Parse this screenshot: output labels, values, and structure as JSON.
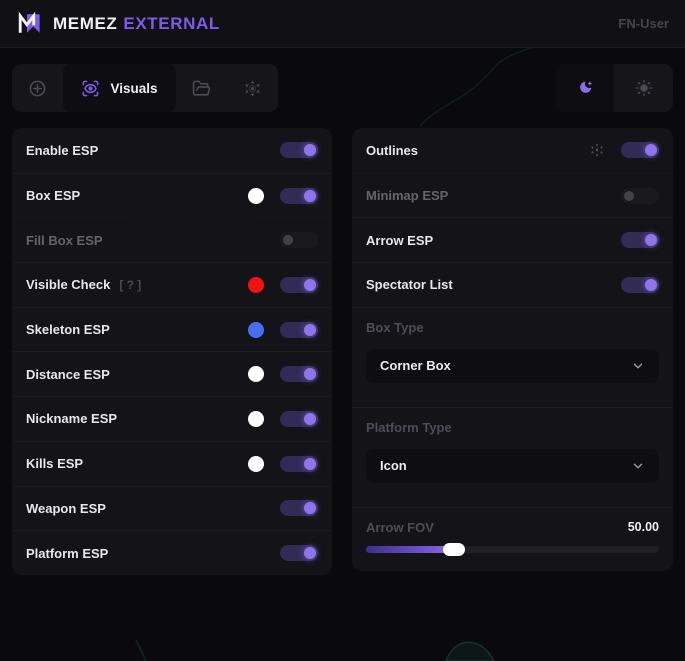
{
  "colors": {
    "accent": "#7c5ce8",
    "toggle_on_track": "#322b55",
    "toggle_on_knob": "#8f75ec",
    "swatch_white": "#ffffff",
    "swatch_red": "#f31212",
    "swatch_blue": "#4a6df5"
  },
  "header": {
    "brand_primary": "MEMEZ",
    "brand_secondary": "EXTERNAL",
    "user_label": "FN-User"
  },
  "toolbar": {
    "tabs": [
      {
        "id": "aim",
        "icon": "crosshair-icon",
        "label": "",
        "active": false
      },
      {
        "id": "visuals",
        "icon": "eye-scan-icon",
        "label": "Visuals",
        "active": true
      },
      {
        "id": "configs",
        "icon": "folder-icon",
        "label": "",
        "active": false
      },
      {
        "id": "settings",
        "icon": "gear-icon",
        "label": "",
        "active": false
      }
    ],
    "theme_toggle": {
      "options": [
        "dark",
        "light"
      ],
      "selected": "dark"
    }
  },
  "panels": {
    "left": {
      "rows": [
        {
          "label": "Enable ESP",
          "toggle": "on"
        },
        {
          "label": "Box ESP",
          "swatch": "#ffffff",
          "toggle": "on"
        },
        {
          "label": "Fill Box ESP",
          "toggle": "off",
          "disabled": true
        },
        {
          "label": "Visible Check",
          "hint": "[ ? ]",
          "swatch": "#f31212",
          "toggle": "on"
        },
        {
          "label": "Skeleton ESP",
          "swatch": "#4a6df5",
          "toggle": "on"
        },
        {
          "label": "Distance ESP",
          "swatch": "#ffffff",
          "toggle": "on"
        },
        {
          "label": "Nickname ESP",
          "swatch": "#ffffff",
          "toggle": "on"
        },
        {
          "label": "Kills ESP",
          "swatch": "#ffffff",
          "toggle": "on"
        },
        {
          "label": "Weapon ESP",
          "toggle": "on"
        },
        {
          "label": "Platform ESP",
          "toggle": "on"
        }
      ]
    },
    "right": {
      "rows": [
        {
          "label": "Outlines",
          "gear": true,
          "toggle": "on"
        },
        {
          "label": "Minimap ESP",
          "toggle": "off",
          "disabled": true
        },
        {
          "label": "Arrow ESP",
          "toggle": "on"
        },
        {
          "label": "Spectator List",
          "toggle": "on"
        }
      ],
      "selects": [
        {
          "label": "Box Type",
          "value": "Corner Box"
        },
        {
          "label": "Platform Type",
          "value": "Icon"
        }
      ],
      "slider": {
        "label": "Arrow FOV",
        "value": "50.00",
        "percent": 30
      }
    }
  }
}
